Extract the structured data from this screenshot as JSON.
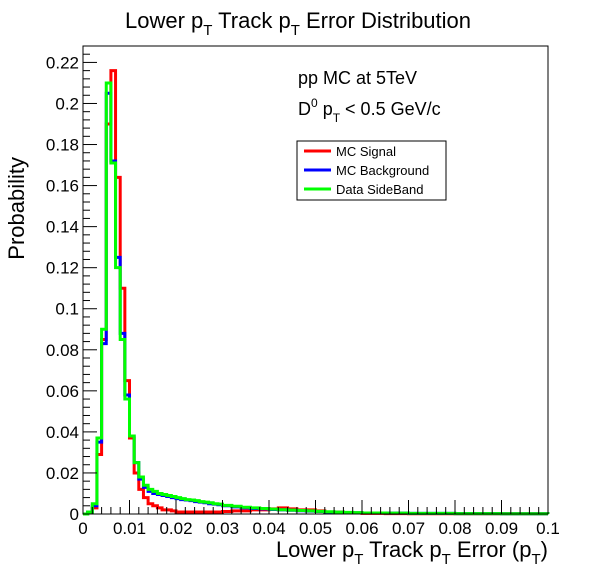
{
  "chart_data": {
    "type": "line",
    "title": {
      "pre": "Lower p",
      "sub1": "T",
      "mid": " Track p",
      "sub2": "T",
      "post": " Error Distribution"
    },
    "xlabel": {
      "pre": "Lower p",
      "sub1": "T",
      "mid": " Track p",
      "sub2": "T",
      "mid2": " Error (p",
      "sub3": "T",
      "post": ")"
    },
    "ylabel": "Probability",
    "xlim": [
      0,
      0.1
    ],
    "ylim": [
      0,
      0.228
    ],
    "xticks": [
      "0",
      "0.01",
      "0.02",
      "0.03",
      "0.04",
      "0.05",
      "0.06",
      "0.07",
      "0.08",
      "0.09",
      "0.1"
    ],
    "yticks": [
      "0",
      "0.02",
      "0.04",
      "0.06",
      "0.08",
      "0.1",
      "0.12",
      "0.14",
      "0.16",
      "0.18",
      "0.2",
      "0.22"
    ],
    "annotations": {
      "line1": "pp MC at 5TeV",
      "line2": {
        "pre": "D",
        "sup": "0",
        "mid": " p",
        "sub": "T",
        "post": " < 0.5 GeV/c"
      }
    },
    "legend_position": "top-right",
    "bin_edges": [
      0,
      0.001,
      0.002,
      0.003,
      0.004,
      0.005,
      0.006,
      0.007,
      0.008,
      0.009,
      0.01,
      0.011,
      0.012,
      0.013,
      0.014,
      0.015,
      0.016,
      0.017,
      0.018,
      0.019,
      0.02,
      0.021,
      0.022,
      0.023,
      0.024,
      0.025,
      0.026,
      0.027,
      0.028,
      0.029,
      0.03,
      0.032,
      0.034,
      0.036,
      0.038,
      0.04,
      0.042,
      0.044,
      0.046,
      0.048,
      0.05,
      0.052,
      0.054,
      0.056,
      0.058,
      0.06,
      0.065,
      0.07,
      0.08,
      0.09,
      0.1
    ],
    "series": [
      {
        "name": "MC Signal",
        "color": "#ff0000",
        "values": [
          0,
          0.0005,
          0.003,
          0.029,
          0.085,
          0.19,
          0.216,
          0.164,
          0.11,
          0.065,
          0.037,
          0.02,
          0.012,
          0.008,
          0.005,
          0.004,
          0.003,
          0.002,
          0.002,
          0.0015,
          0.001,
          0.001,
          0.001,
          0.001,
          0.001,
          0.001,
          0.001,
          0.001,
          0.001,
          0.001,
          0.0012,
          0.0015,
          0.0015,
          0.002,
          0.002,
          0.0025,
          0.003,
          0.0025,
          0.002,
          0.002,
          0.0015,
          0.001,
          0.001,
          0.0007,
          0.0005,
          0.0003,
          0.0002,
          0.0001,
          0.0001,
          0.0001
        ]
      },
      {
        "name": "MC Background",
        "color": "#0000ff",
        "values": [
          0,
          0.001,
          0.004,
          0.035,
          0.083,
          0.205,
          0.172,
          0.125,
          0.088,
          0.058,
          0.038,
          0.025,
          0.017,
          0.013,
          0.011,
          0.01,
          0.0095,
          0.009,
          0.0085,
          0.008,
          0.0075,
          0.007,
          0.0068,
          0.0065,
          0.006,
          0.0058,
          0.0055,
          0.005,
          0.0048,
          0.0045,
          0.004,
          0.0035,
          0.003,
          0.0027,
          0.0025,
          0.0022,
          0.002,
          0.0018,
          0.0016,
          0.0014,
          0.0012,
          0.001,
          0.0008,
          0.0007,
          0.0006,
          0.0005,
          0.0004,
          0.0003,
          0.0002,
          0.0001
        ]
      },
      {
        "name": "Data SideBand",
        "color": "#00ff00",
        "values": [
          0,
          0.001,
          0.005,
          0.037,
          0.09,
          0.21,
          0.171,
          0.12,
          0.085,
          0.056,
          0.038,
          0.025,
          0.018,
          0.014,
          0.012,
          0.011,
          0.01,
          0.0095,
          0.009,
          0.0085,
          0.008,
          0.0075,
          0.007,
          0.0068,
          0.0065,
          0.006,
          0.0058,
          0.0055,
          0.005,
          0.0048,
          0.0042,
          0.0038,
          0.0033,
          0.003,
          0.0027,
          0.0024,
          0.0021,
          0.0019,
          0.0017,
          0.0015,
          0.0013,
          0.0011,
          0.0009,
          0.0008,
          0.0007,
          0.0005,
          0.0004,
          0.0003,
          0.0002,
          0.0001
        ]
      }
    ]
  }
}
